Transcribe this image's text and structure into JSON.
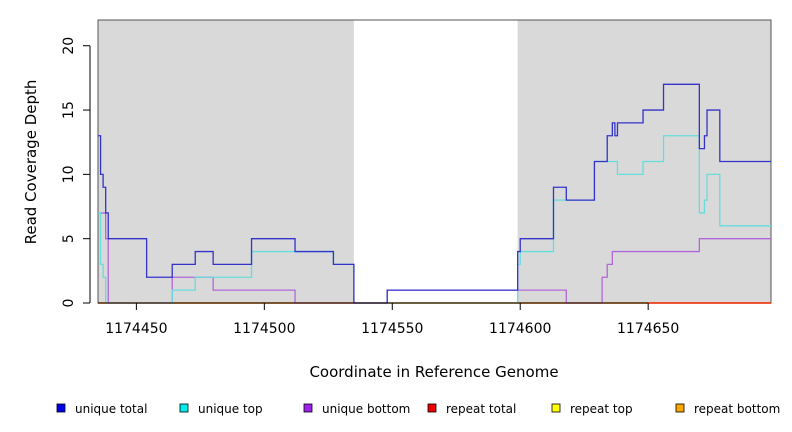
{
  "chart_data": {
    "type": "line",
    "title": "",
    "xlabel": "Coordinate in Reference Genome",
    "ylabel": "Read Coverage Depth",
    "xlim": [
      1174435,
      1174698
    ],
    "ylim": [
      0,
      22
    ],
    "x_ticks": [
      1174450,
      1174500,
      1174550,
      1174600,
      1174650
    ],
    "x_tick_labels": [
      "1174450",
      "1174500",
      "1174550",
      "1174600",
      "1174650"
    ],
    "y_ticks": [
      0,
      5,
      10,
      15,
      20
    ],
    "y_tick_labels": [
      "0",
      "5",
      "10",
      "15",
      "20"
    ],
    "grid": false,
    "legend_position": "bottom",
    "shaded_regions": [
      {
        "x_start": 1174435,
        "x_end": 1174535,
        "color": "#d9d9d9"
      },
      {
        "x_start": 1174599,
        "x_end": 1174698,
        "color": "#d9d9d9"
      }
    ],
    "series": [
      {
        "name": "unique total",
        "color": "#0000ee",
        "line_color": "#3333cc",
        "points": [
          [
            1174435,
            13
          ],
          [
            1174436,
            10
          ],
          [
            1174437,
            9
          ],
          [
            1174438,
            7
          ],
          [
            1174439,
            5
          ],
          [
            1174454,
            2
          ],
          [
            1174464,
            3
          ],
          [
            1174473,
            4
          ],
          [
            1174480,
            3
          ],
          [
            1174495,
            5
          ],
          [
            1174512,
            4
          ],
          [
            1174527,
            3
          ],
          [
            1174535,
            0
          ],
          [
            1174548,
            1
          ],
          [
            1174599,
            4
          ],
          [
            1174600,
            5
          ],
          [
            1174613,
            9
          ],
          [
            1174618,
            8
          ],
          [
            1174629,
            11
          ],
          [
            1174634,
            13
          ],
          [
            1174636,
            14
          ],
          [
            1174637,
            13
          ],
          [
            1174638,
            14
          ],
          [
            1174648,
            15
          ],
          [
            1174656,
            17
          ],
          [
            1174670,
            12
          ],
          [
            1174672,
            13
          ],
          [
            1174673,
            15
          ],
          [
            1174678,
            11
          ],
          [
            1174698,
            11
          ]
        ]
      },
      {
        "name": "unique top",
        "color": "#00eeee",
        "line_color": "#66dddd",
        "points": [
          [
            1174435,
            7
          ],
          [
            1174436,
            3
          ],
          [
            1174437,
            2
          ],
          [
            1174438,
            0
          ],
          [
            1174464,
            1
          ],
          [
            1174473,
            2
          ],
          [
            1174480,
            2
          ],
          [
            1174495,
            4
          ],
          [
            1174512,
            4
          ],
          [
            1174527,
            3
          ],
          [
            1174535,
            0
          ],
          [
            1174599,
            3
          ],
          [
            1174600,
            4
          ],
          [
            1174613,
            8
          ],
          [
            1174618,
            8
          ],
          [
            1174629,
            11
          ],
          [
            1174634,
            11
          ],
          [
            1174638,
            10
          ],
          [
            1174648,
            11
          ],
          [
            1174656,
            13
          ],
          [
            1174670,
            7
          ],
          [
            1174672,
            8
          ],
          [
            1174673,
            10
          ],
          [
            1174678,
            6
          ],
          [
            1174698,
            6
          ]
        ]
      },
      {
        "name": "unique bottom",
        "color": "#a020f0",
        "line_color": "#b266dd",
        "points": [
          [
            1174435,
            7
          ],
          [
            1174436,
            7
          ],
          [
            1174438,
            5
          ],
          [
            1174439,
            0
          ],
          [
            1174464,
            2
          ],
          [
            1174480,
            1
          ],
          [
            1174512,
            0
          ],
          [
            1174535,
            0
          ],
          [
            1174548,
            1
          ],
          [
            1174599,
            1
          ],
          [
            1174618,
            0
          ],
          [
            1174632,
            2
          ],
          [
            1174634,
            3
          ],
          [
            1174636,
            4
          ],
          [
            1174656,
            4
          ],
          [
            1174670,
            5
          ],
          [
            1174698,
            5
          ]
        ]
      },
      {
        "name": "repeat total",
        "color": "#ee0000",
        "line_color": "#ee0000",
        "points": [
          [
            1174435,
            0
          ],
          [
            1174698,
            0
          ]
        ]
      },
      {
        "name": "repeat top",
        "color": "#ffff00",
        "line_color": "#eeee00",
        "points": [
          [
            1174435,
            0
          ],
          [
            1174698,
            0
          ]
        ]
      },
      {
        "name": "repeat bottom",
        "color": "#ffa500",
        "line_color": "#ffa500",
        "points": [
          [
            1174435,
            0
          ],
          [
            1174698,
            0
          ]
        ]
      }
    ]
  }
}
